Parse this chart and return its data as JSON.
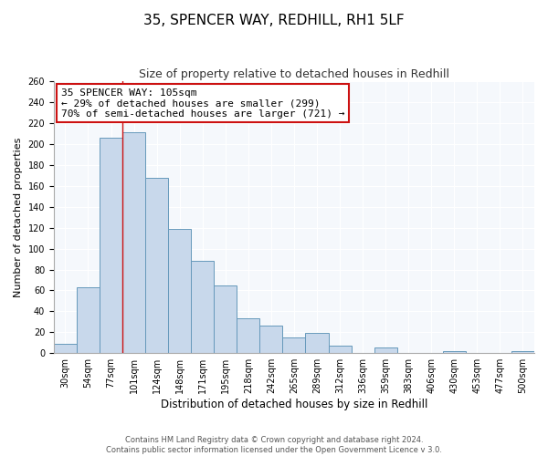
{
  "title1": "35, SPENCER WAY, REDHILL, RH1 5LF",
  "title2": "Size of property relative to detached houses in Redhill",
  "xlabel": "Distribution of detached houses by size in Redhill",
  "ylabel": "Number of detached properties",
  "bin_labels": [
    "30sqm",
    "54sqm",
    "77sqm",
    "101sqm",
    "124sqm",
    "148sqm",
    "171sqm",
    "195sqm",
    "218sqm",
    "242sqm",
    "265sqm",
    "289sqm",
    "312sqm",
    "336sqm",
    "359sqm",
    "383sqm",
    "406sqm",
    "430sqm",
    "453sqm",
    "477sqm",
    "500sqm"
  ],
  "bar_values": [
    9,
    63,
    206,
    211,
    168,
    119,
    88,
    65,
    33,
    26,
    15,
    19,
    7,
    0,
    5,
    0,
    0,
    2,
    0,
    0,
    2
  ],
  "bar_color": "#c8d8eb",
  "bar_edge_color": "#6699bb",
  "vline_color": "#cc1111",
  "vline_x_data": 3.0,
  "annotation_text": "35 SPENCER WAY: 105sqm\n← 29% of detached houses are smaller (299)\n70% of semi-detached houses are larger (721) →",
  "annotation_box_color": "#ffffff",
  "annotation_edge_color": "#cc1111",
  "ylim": [
    0,
    260
  ],
  "yticks": [
    0,
    20,
    40,
    60,
    80,
    100,
    120,
    140,
    160,
    180,
    200,
    220,
    240,
    260
  ],
  "footer1": "Contains HM Land Registry data © Crown copyright and database right 2024.",
  "footer2": "Contains public sector information licensed under the Open Government Licence v 3.0.",
  "background_color": "#ffffff",
  "plot_background": "#f5f8fc",
  "grid_color": "#ffffff",
  "title1_fontsize": 11,
  "title2_fontsize": 9,
  "xlabel_fontsize": 8.5,
  "ylabel_fontsize": 8,
  "tick_fontsize": 7,
  "annot_fontsize": 8,
  "footer_fontsize": 6
}
